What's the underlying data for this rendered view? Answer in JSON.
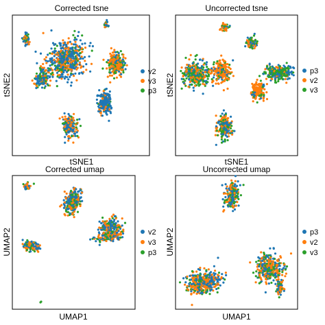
{
  "colors": {
    "blue": "#1f77b4",
    "orange": "#ff7f0e",
    "green": "#2ca02c"
  },
  "chart_data": [
    {
      "type": "scatter",
      "title": "Corrected tsne",
      "xlabel": "tSNE1",
      "ylabel": "tSNE2",
      "grid": false,
      "ticks": false,
      "legend_position": "right",
      "series": [
        {
          "name": "v2",
          "color": "#1f77b4"
        },
        {
          "name": "v3",
          "color": "#ff7f0e"
        },
        {
          "name": "p3",
          "color": "#2ca02c"
        }
      ]
    },
    {
      "type": "scatter",
      "title": "Uncorrected tsne",
      "xlabel": "tSNE1",
      "ylabel": "tSNE2",
      "grid": false,
      "ticks": false,
      "legend_position": "right",
      "series": [
        {
          "name": "p3",
          "color": "#1f77b4"
        },
        {
          "name": "v2",
          "color": "#ff7f0e"
        },
        {
          "name": "v3",
          "color": "#2ca02c"
        }
      ]
    },
    {
      "type": "scatter",
      "title": "Corrected umap",
      "xlabel": "UMAP1",
      "ylabel": "UMAP2",
      "grid": false,
      "ticks": false,
      "legend_position": "right",
      "series": [
        {
          "name": "v2",
          "color": "#1f77b4"
        },
        {
          "name": "v3",
          "color": "#ff7f0e"
        },
        {
          "name": "p3",
          "color": "#2ca02c"
        }
      ]
    },
    {
      "type": "scatter",
      "title": "Uncorrected umap",
      "xlabel": "UMAP1",
      "ylabel": "UMAP2",
      "grid": false,
      "ticks": false,
      "legend_position": "right",
      "series": [
        {
          "name": "p3",
          "color": "#1f77b4"
        },
        {
          "name": "v2",
          "color": "#ff7f0e"
        },
        {
          "name": "v3",
          "color": "#2ca02c"
        }
      ]
    }
  ]
}
